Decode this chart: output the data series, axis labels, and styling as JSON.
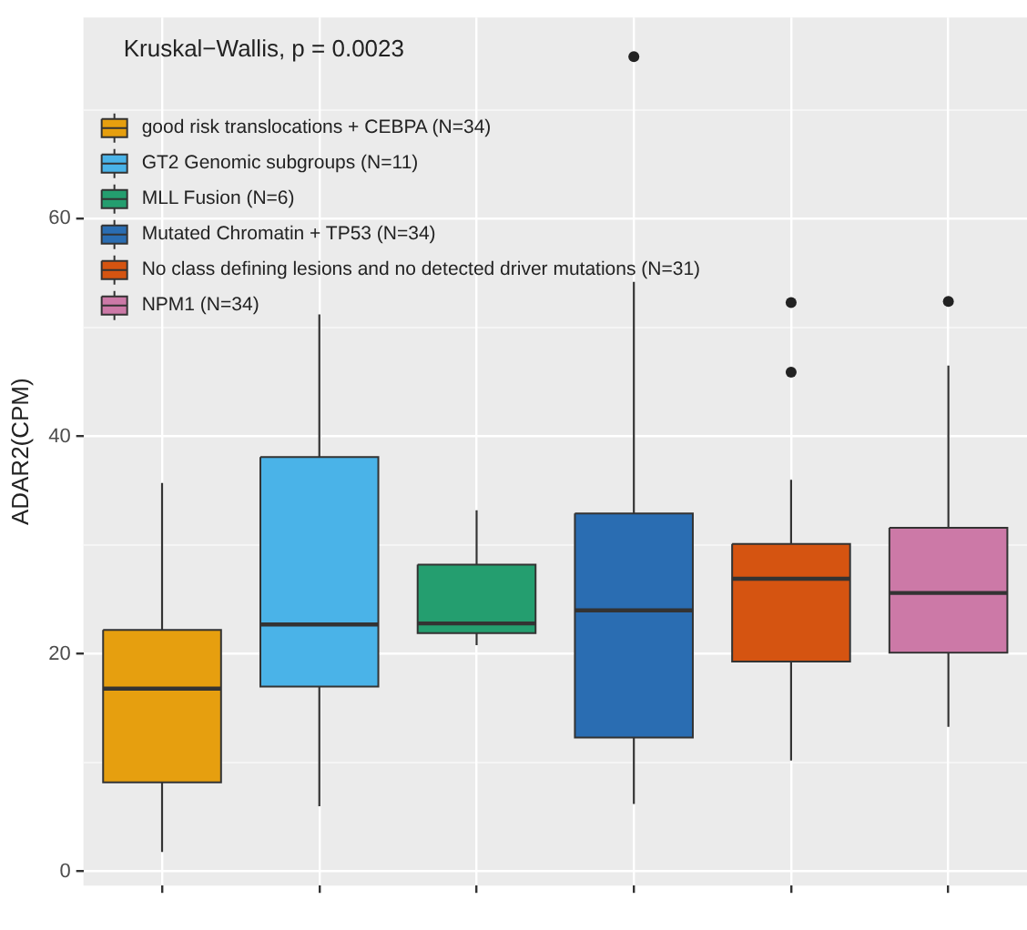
{
  "chart_data": {
    "type": "box",
    "ylabel": "ADAR2(CPM)",
    "annotations": [
      "Kruskal−Wallis, p = 0.0023"
    ],
    "categories": [
      null,
      null,
      null,
      null,
      null,
      null
    ],
    "ylim": [
      -1.3,
      78.5
    ],
    "yticks": [
      0,
      {
        "value": 10,
        "label": null
      },
      20,
      {
        "value": 30,
        "label": null
      },
      40,
      {
        "value": 50,
        "label": null
      },
      60,
      {
        "value": 70,
        "label": null
      }
    ],
    "grid": true,
    "legend": "top left",
    "series": [
      {
        "name": "good risk translocations + CEBPA (N=34)",
        "color": "#e69f0f",
        "boxes": [
          {
            "low": 1.8,
            "q1": 8.2,
            "median": 16.8,
            "q3": 22.2,
            "high": 35.7
          },
          null,
          null,
          null,
          null,
          null
        ]
      },
      {
        "name": "GT2 Genomic subgroups (N=11)",
        "color": "#4ab3e8",
        "boxes": [
          null,
          {
            "low": 6.0,
            "q1": 17.0,
            "median": 22.7,
            "q3": 38.1,
            "high": 51.2
          },
          null,
          null,
          null,
          null
        ]
      },
      {
        "name": "MLL Fusion (N=6)",
        "color": "#249e6f",
        "boxes": [
          null,
          null,
          {
            "low": 20.8,
            "q1": 21.9,
            "median": 22.8,
            "q3": 28.2,
            "high": 33.2
          },
          null,
          null,
          null
        ]
      },
      {
        "name": "Mutated Chromatin + TP53 (N=34)",
        "color": "#2a6db2",
        "boxes": [
          null,
          null,
          null,
          {
            "low": 6.2,
            "q1": 12.3,
            "median": 24.0,
            "q3": 32.9,
            "high": 54.2,
            "outliers": [
              74.9
            ]
          },
          null,
          null
        ]
      },
      {
        "name": "No class defining lesions and no detected driver mutations (N=31)",
        "color": "#d55411",
        "boxes": [
          null,
          null,
          null,
          null,
          {
            "low": 10.2,
            "q1": 19.3,
            "median": 26.9,
            "q3": 30.1,
            "high": 36.0,
            "outliers": [
              45.9,
              52.3
            ]
          },
          null
        ]
      },
      {
        "name": "NPM1 (N=34)",
        "color": "#cc79a7",
        "boxes": [
          null,
          null,
          null,
          null,
          null,
          {
            "low": 13.3,
            "q1": 20.1,
            "median": 25.6,
            "q3": 31.6,
            "high": 46.5,
            "outliers": [
              52.4
            ]
          }
        ]
      }
    ]
  }
}
